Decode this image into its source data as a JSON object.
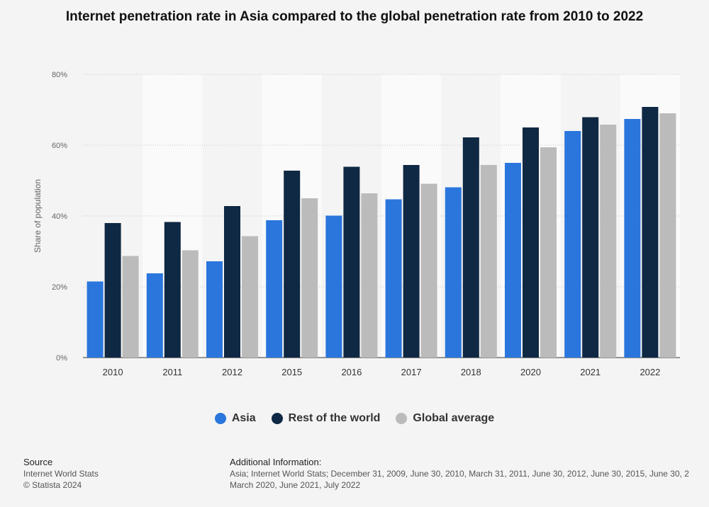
{
  "title": "Internet penetration rate in Asia compared to the global penetration rate from 2010 to 2022",
  "chart_data": {
    "type": "bar",
    "categories": [
      "2010",
      "2011",
      "2012",
      "2015",
      "2016",
      "2017",
      "2018",
      "2020",
      "2021",
      "2022"
    ],
    "series": [
      {
        "name": "Asia",
        "color": "#2a76dd",
        "values": [
          21.5,
          23.8,
          27.2,
          38.8,
          40.1,
          44.7,
          48.1,
          55.0,
          64.0,
          67.4
        ]
      },
      {
        "name": "Rest of the world",
        "color": "#0f2843",
        "values": [
          38.0,
          38.3,
          42.8,
          52.8,
          53.9,
          54.4,
          62.2,
          65.0,
          67.9,
          70.8
        ]
      },
      {
        "name": "Global average",
        "color": "#bbbbbb",
        "values": [
          28.7,
          30.3,
          34.3,
          45.0,
          46.4,
          49.1,
          54.4,
          59.4,
          65.8,
          69.0
        ]
      }
    ],
    "ylabel": "Share of population",
    "yticks": [
      "0%",
      "20%",
      "40%",
      "60%",
      "80%"
    ],
    "ylim": [
      0,
      80
    ],
    "grid": true,
    "legend_position": "bottom"
  },
  "footer": {
    "source_heading": "Source",
    "source_lines": [
      "Internet World Stats",
      "© Statista 2024"
    ],
    "additional_heading": "Additional Information:",
    "additional_line1": "Asia; Internet World Stats; December 31, 2009, June 30, 2010, March 31, 2011, June 30, 2012, June 30, 2015, June 30, 2",
    "additional_line2": "March 2020, June 2021, July 2022"
  }
}
